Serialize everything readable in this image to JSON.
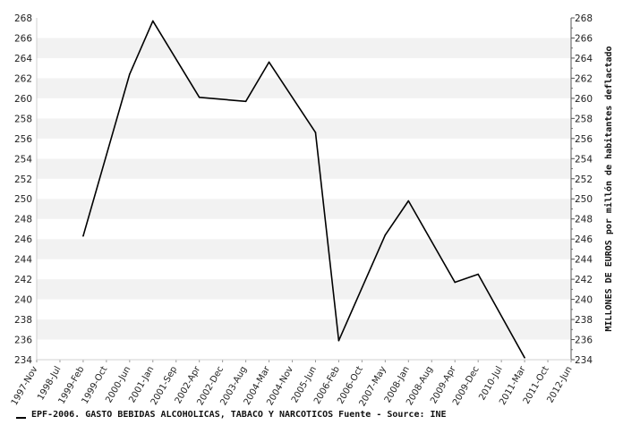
{
  "chart_data": {
    "type": "line",
    "xlabel": "",
    "ylabel": "MILLONES DE EUROS por millón de habitantes deflactado",
    "x_ticks": [
      "1997-Nov",
      "1998-Jul",
      "1999-Feb",
      "1999-Oct",
      "2000-Jun",
      "2001-Jan",
      "2001-Sep",
      "2002-Apr",
      "2002-Dec",
      "2003-Aug",
      "2004-Mar",
      "2004-Nov",
      "2005-Jun",
      "2006-Feb",
      "2006-Oct",
      "2007-May",
      "2008-Jan",
      "2008-Aug",
      "2009-Apr",
      "2009-Dec",
      "2010-Jul",
      "2011-Mar",
      "2011-Oct",
      "2012-Jun"
    ],
    "y_ticks": [
      234,
      236,
      238,
      240,
      242,
      244,
      246,
      248,
      250,
      252,
      254,
      256,
      258,
      260,
      262,
      264,
      266,
      268
    ],
    "ylim": [
      234,
      268
    ],
    "grid": "horizontal bands",
    "series": [
      {
        "name": "EPF-2006. GASTO BEBIDAS ALCOHOLICAS, TABACO Y NARCOTICOS  Fuente - Source: INE",
        "color": "#000000",
        "x": [
          "1999-Feb",
          "2000-Jun",
          "2001-Jan",
          "2002-Apr",
          "2003-Aug",
          "2004-Mar",
          "2005-Jun",
          "2006-Feb",
          "2007-May",
          "2008-Jan",
          "2009-Apr",
          "2009-Dec",
          "2011-Mar"
        ],
        "values": [
          246.3,
          262.4,
          267.7,
          260.1,
          259.7,
          263.6,
          256.6,
          235.9,
          246.4,
          249.8,
          241.7,
          242.5,
          234.2
        ]
      }
    ]
  }
}
